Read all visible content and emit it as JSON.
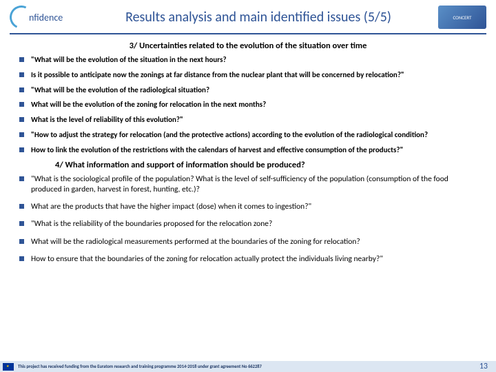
{
  "header": {
    "logo_left_text": "nfidence",
    "title": "Results analysis and main identified issues (5/5)",
    "logo_right_text": "CONCERT"
  },
  "section3": {
    "heading": "3/ Uncertainties related to the evolution of the situation over time",
    "items": [
      "\"What will be the evolution of the situation in the next hours?",
      "Is it possible to anticipate now the zonings at far distance from the nuclear plant that will be concerned by relocation?\"",
      "\"What will be the evolution of the radiological situation?",
      "What will be the evolution of the zoning for relocation in the next months?",
      "What is the level of reliability of this evolution?\"",
      "\"How to adjust the strategy for relocation (and the protective actions) according to the evolution of the radiological condition?",
      "How to link the evolution of the restrictions with the calendars of harvest and effective consumption of the products?\""
    ]
  },
  "section4": {
    "heading": "4/ What information and support of information should be produced?",
    "items": [
      "\"What is the sociological profile of the population? What is the level of self-sufficiency of the population (consumption of the food produced in garden, harvest in forest, hunting, etc.)?",
      "What are the products that have the higher impact (dose) when it comes to ingestion?\"",
      "\"What is the reliability of the boundaries proposed for the relocation zone?",
      "What will be the radiological measurements performed at the boundaries of the zoning for relocation?",
      "How to ensure that the boundaries of the zoning for relocation actually protect the individuals living nearby?\""
    ]
  },
  "footer": {
    "text": "This project has received funding from the Euratom research and training programme 2014-2018 under grant agreement No 662287",
    "page": "13"
  },
  "colors": {
    "accent": "#2f5496",
    "footer_bg": "#dce6f2"
  }
}
